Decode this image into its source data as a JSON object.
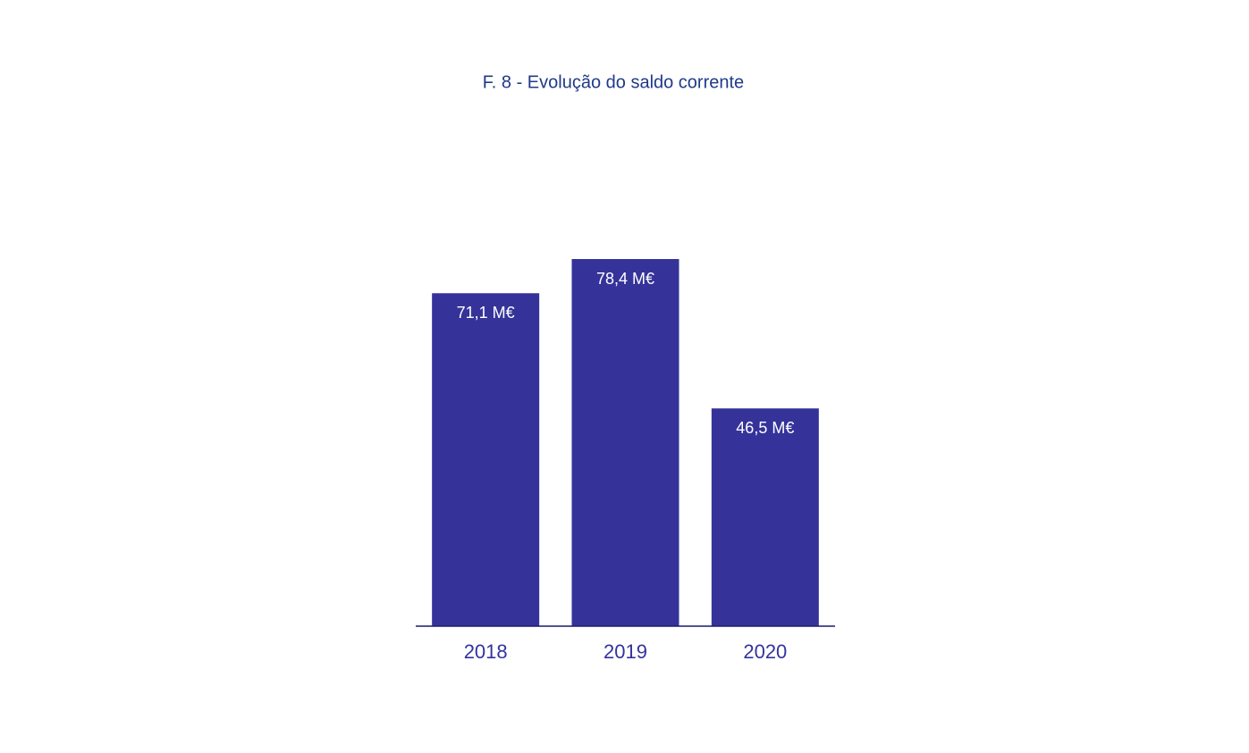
{
  "chart_data": {
    "type": "bar",
    "title": "F. 8 - Evolução do saldo corrente",
    "categories": [
      "2018",
      "2019",
      "2020"
    ],
    "values": [
      71.1,
      78.4,
      46.5
    ],
    "value_labels": [
      "71,1 M€",
      "78,4 M€",
      "46,5 M€"
    ],
    "color": "#35339a"
  }
}
